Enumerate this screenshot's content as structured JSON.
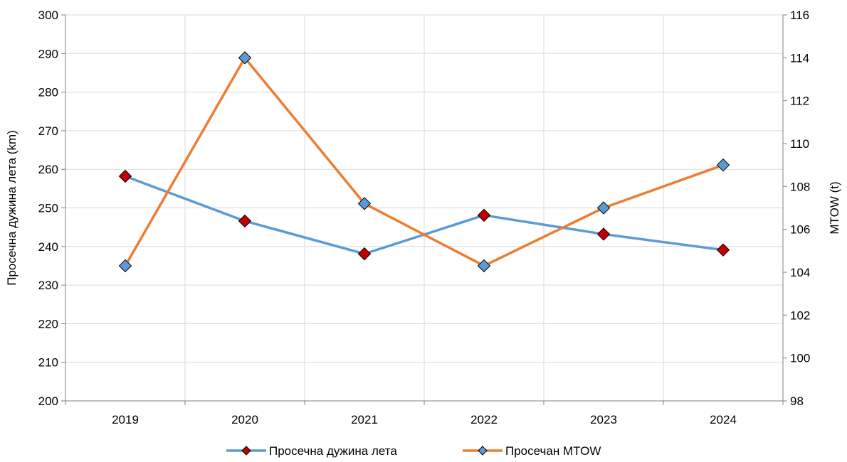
{
  "chart_data": {
    "type": "line",
    "categories": [
      "2019",
      "2020",
      "2021",
      "2022",
      "2023",
      "2024"
    ],
    "y_left": {
      "label": "Просечна дужина лета (km)",
      "range": [
        200,
        300
      ],
      "ticks": [
        200,
        210,
        220,
        230,
        240,
        250,
        260,
        270,
        280,
        290,
        300
      ]
    },
    "y_right": {
      "label": "MTOW (t)",
      "range": [
        98,
        116
      ],
      "ticks": [
        98,
        100,
        102,
        104,
        106,
        108,
        110,
        112,
        114,
        116
      ]
    },
    "grid": true,
    "legend_position": "bottom",
    "series": [
      {
        "name": "Просечна дужина лета",
        "axis": "left",
        "values": [
          258.2,
          246.6,
          238.1,
          248.1,
          243.2,
          239.1
        ],
        "line_color": "#5b9bd5",
        "marker_color": "#c00000"
      },
      {
        "name": "Просечан MTOW",
        "axis": "right",
        "values": [
          104.3,
          114.0,
          107.2,
          104.3,
          107.0,
          109.0
        ],
        "line_color": "#ed7d31",
        "marker_color": "#5b9bd5"
      }
    ]
  }
}
